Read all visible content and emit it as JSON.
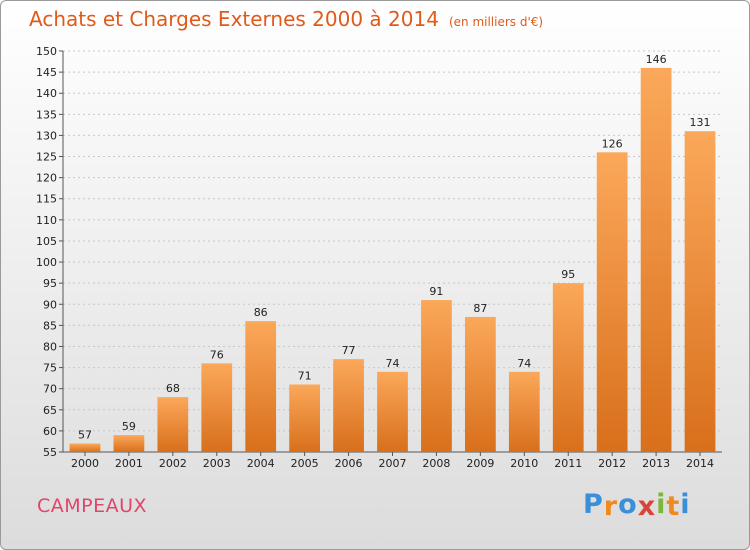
{
  "title": "Achats et Charges Externes 2000 à 2014",
  "subtitle": "(en milliers d'€)",
  "commune": "CAMPEAUX",
  "logo": {
    "letters": [
      "P",
      "r",
      "o",
      "x",
      "i",
      "t",
      "i"
    ],
    "colors": [
      "#3a8fd8",
      "#f08a1c",
      "#3a8fd8",
      "#d8443a",
      "#7ab83a",
      "#f08a1c",
      "#3a8fd8"
    ]
  },
  "colors": {
    "bar_light": "#fba85a",
    "bar_dark": "#d86f1b",
    "text": "#222222",
    "grid": "#c8c8c8"
  },
  "chart_data": {
    "type": "bar",
    "categories": [
      "2000",
      "2001",
      "2002",
      "2003",
      "2004",
      "2005",
      "2006",
      "2007",
      "2008",
      "2009",
      "2010",
      "2011",
      "2012",
      "2013",
      "2014"
    ],
    "values": [
      57,
      59,
      68,
      76,
      86,
      71,
      77,
      74,
      91,
      87,
      74,
      95,
      126,
      146,
      131
    ],
    "data_labels": [
      "57",
      "59",
      "68",
      "76",
      "86",
      "71",
      "77",
      "74",
      "91",
      "87",
      "74",
      "95",
      "126",
      "146",
      "131"
    ],
    "ylim": [
      55,
      150
    ],
    "yticks": [
      "55",
      "60",
      "65",
      "70",
      "75",
      "80",
      "85",
      "90",
      "95",
      "100",
      "105",
      "110",
      "115",
      "120",
      "125",
      "130",
      "135",
      "140",
      "145",
      "150"
    ],
    "grid": true,
    "legend": "none"
  }
}
